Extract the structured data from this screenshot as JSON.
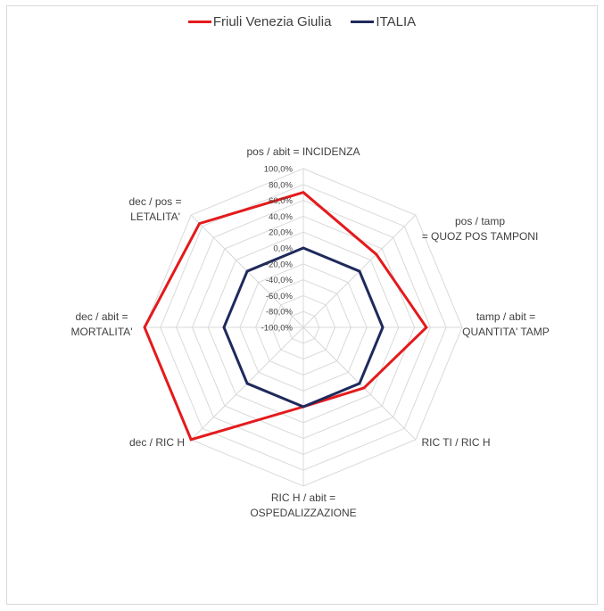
{
  "chart_data": {
    "type": "radar",
    "axes": [
      [
        "pos / abit = INCIDENZA"
      ],
      [
        "pos / tamp",
        "= QUOZ POS TAMPONI"
      ],
      [
        "tamp / abit =",
        "QUANTITA' TAMP"
      ],
      [
        "RIC TI / RIC H"
      ],
      [
        "RIC H / abit =",
        "OSPEDALIZZAZIONE"
      ],
      [
        "dec  / RIC H"
      ],
      [
        "dec / abit =",
        "MORTALITA'"
      ],
      [
        "dec / pos =",
        "LETALITA'"
      ]
    ],
    "ticks": [
      "-100,0%",
      "-80,0%",
      "-60,0%",
      "-40,0%",
      "-20,0%",
      "0,0%",
      "20,0%",
      "40,0%",
      "60,0%",
      "80,0%",
      "100,0%"
    ],
    "rmin": -100,
    "rmax": 100,
    "series": [
      {
        "name": "Friuli Venezia Giulia",
        "color": "#e41a1c",
        "values": [
          70,
          30,
          55,
          8,
          0,
          100,
          100,
          85
        ]
      },
      {
        "name": "ITALIA",
        "color": "#1f2a5c",
        "values": [
          0,
          0,
          0,
          0,
          0,
          0,
          0,
          0
        ]
      }
    ],
    "grid": true,
    "legend_position": "top"
  }
}
